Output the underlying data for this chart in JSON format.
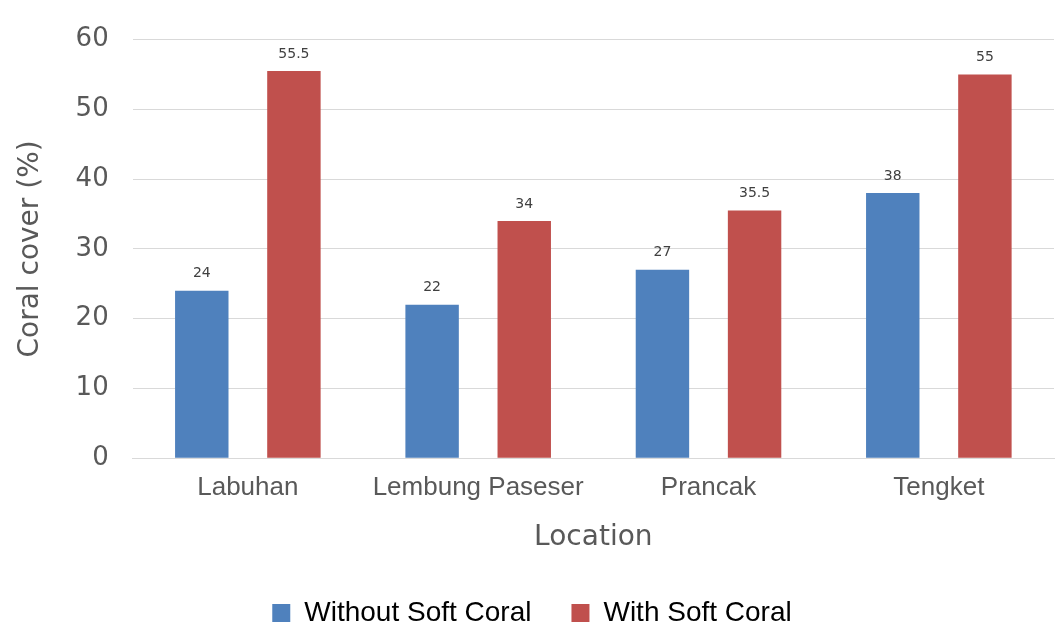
{
  "chart_data": {
    "type": "bar",
    "xlabel": "Location",
    "ylabel": "Coral cover (%)",
    "categories": [
      "Labuhan",
      "Lembung Paseser",
      "Prancak",
      "Tengket"
    ],
    "series": [
      {
        "name": "Without Soft Coral",
        "color": "#4f81bd",
        "values": [
          24,
          22,
          27,
          38
        ]
      },
      {
        "name": "With Soft Coral",
        "color": "#c0504d",
        "values": [
          55.5,
          34,
          35.5,
          55
        ]
      }
    ],
    "ylim": [
      0,
      60
    ],
    "yticks": [
      0,
      10,
      20,
      30,
      40,
      50,
      60
    ],
    "grid": "y",
    "legend": "bottom",
    "data_labels": true
  }
}
